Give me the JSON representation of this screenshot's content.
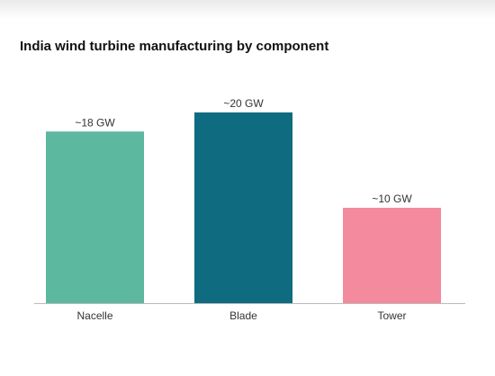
{
  "chart_data": {
    "type": "bar",
    "title": "India wind turbine manufacturing by component",
    "categories": [
      "Nacelle",
      "Blade",
      "Tower"
    ],
    "values": [
      18,
      20,
      10
    ],
    "value_labels": [
      "~18 GW",
      "~20 GW",
      "~10 GW"
    ],
    "colors": [
      "#5cb89f",
      "#0f6b80",
      "#f48a9e"
    ]
  }
}
